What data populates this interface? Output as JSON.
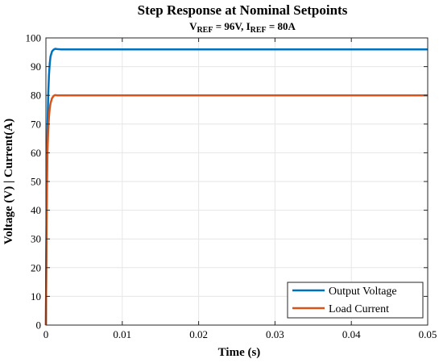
{
  "chart_data": {
    "type": "line",
    "title": "Step Response at Nominal Setpoints",
    "subtitle": {
      "v_ref_base": "V",
      "v_ref_sub": "REF",
      "v_ref_value": " = 96V, ",
      "i_ref_base": "I",
      "i_ref_sub": "REF",
      "i_ref_value": " = 80A"
    },
    "xlabel": "Time (s)",
    "ylabel": "Voltage (V) | Current(A)",
    "xlim": [
      0,
      0.05
    ],
    "ylim": [
      0,
      100
    ],
    "xticks": [
      "0",
      "0.01",
      "0.02",
      "0.03",
      "0.04",
      "0.05"
    ],
    "yticks": [
      "0",
      "10",
      "20",
      "30",
      "40",
      "50",
      "60",
      "70",
      "80",
      "90",
      "100"
    ],
    "grid": true,
    "legend": {
      "placement": "bottom-right",
      "entries": [
        "Output Voltage",
        "Load Current"
      ]
    },
    "series": [
      {
        "name": "Output Voltage",
        "color": "#0072BD",
        "x": [
          0,
          0.0001,
          0.0002,
          0.0003,
          0.0004,
          0.0005,
          0.0006,
          0.0008,
          0.001,
          0.0012,
          0.0015,
          0.002,
          0.003,
          0.01,
          0.02,
          0.03,
          0.04,
          0.05
        ],
        "y": [
          0,
          45,
          68,
          80,
          87,
          91,
          93.5,
          95.3,
          95.9,
          96.2,
          96.1,
          96.0,
          96.0,
          96.0,
          96.0,
          96.0,
          96.0,
          96.0
        ]
      },
      {
        "name": "Load Current",
        "color": "#D95319",
        "x": [
          0,
          0.0001,
          0.0002,
          0.0003,
          0.0004,
          0.0005,
          0.0006,
          0.0008,
          0.001,
          0.0012,
          0.0015,
          0.002,
          0.003,
          0.01,
          0.02,
          0.03,
          0.04,
          0.05
        ],
        "y": [
          0,
          40,
          60,
          68,
          72.5,
          75.5,
          77.2,
          79.0,
          79.8,
          80.1,
          80.0,
          80.0,
          80.0,
          80.0,
          80.0,
          80.0,
          80.0,
          80.0
        ]
      }
    ]
  }
}
